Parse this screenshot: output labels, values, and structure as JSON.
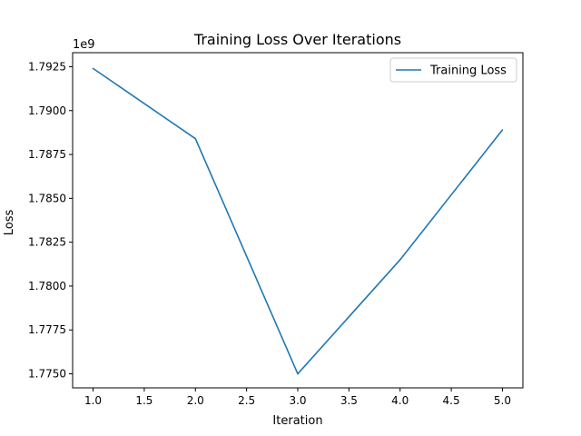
{
  "chart_data": {
    "type": "line",
    "title": "Training Loss Over Iterations",
    "xlabel": "Iteration",
    "ylabel": "Loss",
    "y_offset_label": "1e9",
    "xlim": [
      0.8,
      5.2
    ],
    "ylim": [
      1.7742,
      1.7933
    ],
    "x_ticks": [
      1.0,
      1.5,
      2.0,
      2.5,
      3.0,
      3.5,
      4.0,
      4.5,
      5.0
    ],
    "x_tick_labels": [
      "1.0",
      "1.5",
      "2.0",
      "2.5",
      "3.0",
      "3.5",
      "4.0",
      "4.5",
      "5.0"
    ],
    "y_ticks": [
      1.775,
      1.7775,
      1.78,
      1.7825,
      1.785,
      1.7875,
      1.79,
      1.7925
    ],
    "y_tick_labels": [
      "1.7750",
      "1.7775",
      "1.7800",
      "1.7825",
      "1.7850",
      "1.7875",
      "1.7900",
      "1.7925"
    ],
    "grid": false,
    "legend_position": "top-right",
    "series": [
      {
        "name": "Training Loss",
        "color": "#1f77b4",
        "x": [
          1,
          2,
          3,
          4,
          5
        ],
        "values": [
          1.7924,
          1.7884,
          1.775,
          1.7815,
          1.7889
        ]
      }
    ]
  }
}
